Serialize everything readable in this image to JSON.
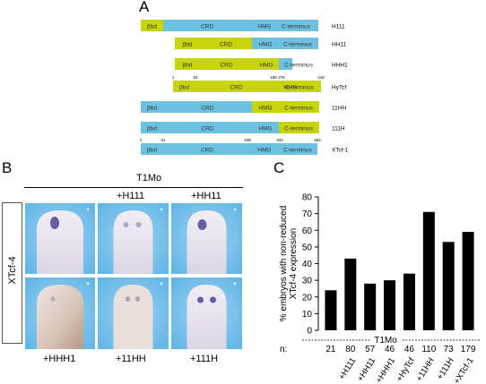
{
  "figure": {
    "panel_a_letter": "A",
    "panel_b_letter": "B",
    "panel_c_letter": "C"
  },
  "panel_a": {
    "segment_labels": {
      "bbd": "βbd",
      "crd": "CRD",
      "hmg": "HMG",
      "cterm": "C-terminus"
    },
    "colors": {
      "blue": "#6cc1e1",
      "green": "#c8d40a"
    },
    "constructs": [
      {
        "name": "H111",
        "segments": [
          [
            "green",
            "βbd"
          ],
          [
            "blue",
            "CRD"
          ],
          [
            "blue",
            "HMG"
          ],
          [
            "blue",
            "C-terminus"
          ]
        ]
      },
      {
        "name": "HH11",
        "segments": [
          [
            "green",
            "βbd"
          ],
          [
            "green",
            "CRD"
          ],
          [
            "blue",
            "HMG"
          ],
          [
            "blue",
            "C-terminus"
          ]
        ]
      },
      {
        "name": "HHH1",
        "segments": [
          [
            "green",
            "βbd"
          ],
          [
            "green",
            "CRD"
          ],
          [
            "green",
            "HMG"
          ],
          [
            "blue",
            "C-terminus"
          ]
        ]
      },
      {
        "name": "HyTcf",
        "numbers": [
          "1",
          "53",
          "180",
          "276",
          "418"
        ],
        "segments": [
          [
            "green",
            "βbd"
          ],
          [
            "green",
            "CRD"
          ],
          [
            "green",
            "HMG"
          ],
          [
            "green",
            "C-terminus"
          ]
        ]
      },
      {
        "name": "11HH",
        "segments": [
          [
            "blue",
            "βbd"
          ],
          [
            "blue",
            "CRD"
          ],
          [
            "green",
            "HMG"
          ],
          [
            "green",
            "C-terminus"
          ]
        ]
      },
      {
        "name": "111H",
        "segments": [
          [
            "blue",
            "βbd"
          ],
          [
            "blue",
            "CRD"
          ],
          [
            "blue",
            "HMG"
          ],
          [
            "green",
            "C-terminus"
          ]
        ]
      },
      {
        "name": "XTcf-1",
        "numbers": [
          "1",
          "51",
          "239",
          "333",
          "364"
        ],
        "segments": [
          [
            "blue",
            "βbd"
          ],
          [
            "blue",
            "CRD"
          ],
          [
            "blue",
            "HMG"
          ],
          [
            "blue",
            "C-terminus"
          ]
        ]
      }
    ]
  },
  "panel_b": {
    "header": "T1Mo",
    "row_label": "XTcf-4",
    "top_labels": [
      "+H111",
      "+HH11"
    ],
    "bottom_labels": [
      "+HHH1",
      "+11HH",
      "+111H"
    ],
    "asterisk": "*"
  },
  "chart_data": {
    "type": "bar",
    "ylabel": "% embryos with non-reduced XTcf-4 expression",
    "ylim": [
      0,
      80
    ],
    "yticks": [
      0,
      10,
      20,
      30,
      40,
      50,
      60,
      70,
      80
    ],
    "categories": [
      "T1Mo",
      "+H111",
      "+HH11",
      "+HHH1",
      "+HyTcf",
      "+11HH",
      "+111H",
      "+XTcf-1"
    ],
    "values": [
      24,
      43,
      28,
      30,
      34,
      71,
      53,
      59
    ],
    "n_label": "n:",
    "n_values": [
      "21",
      "80",
      "57",
      "46",
      "46",
      "110",
      "73",
      "179"
    ],
    "group_label": "T1Mo",
    "bar_color": "#000000",
    "grid": false
  }
}
